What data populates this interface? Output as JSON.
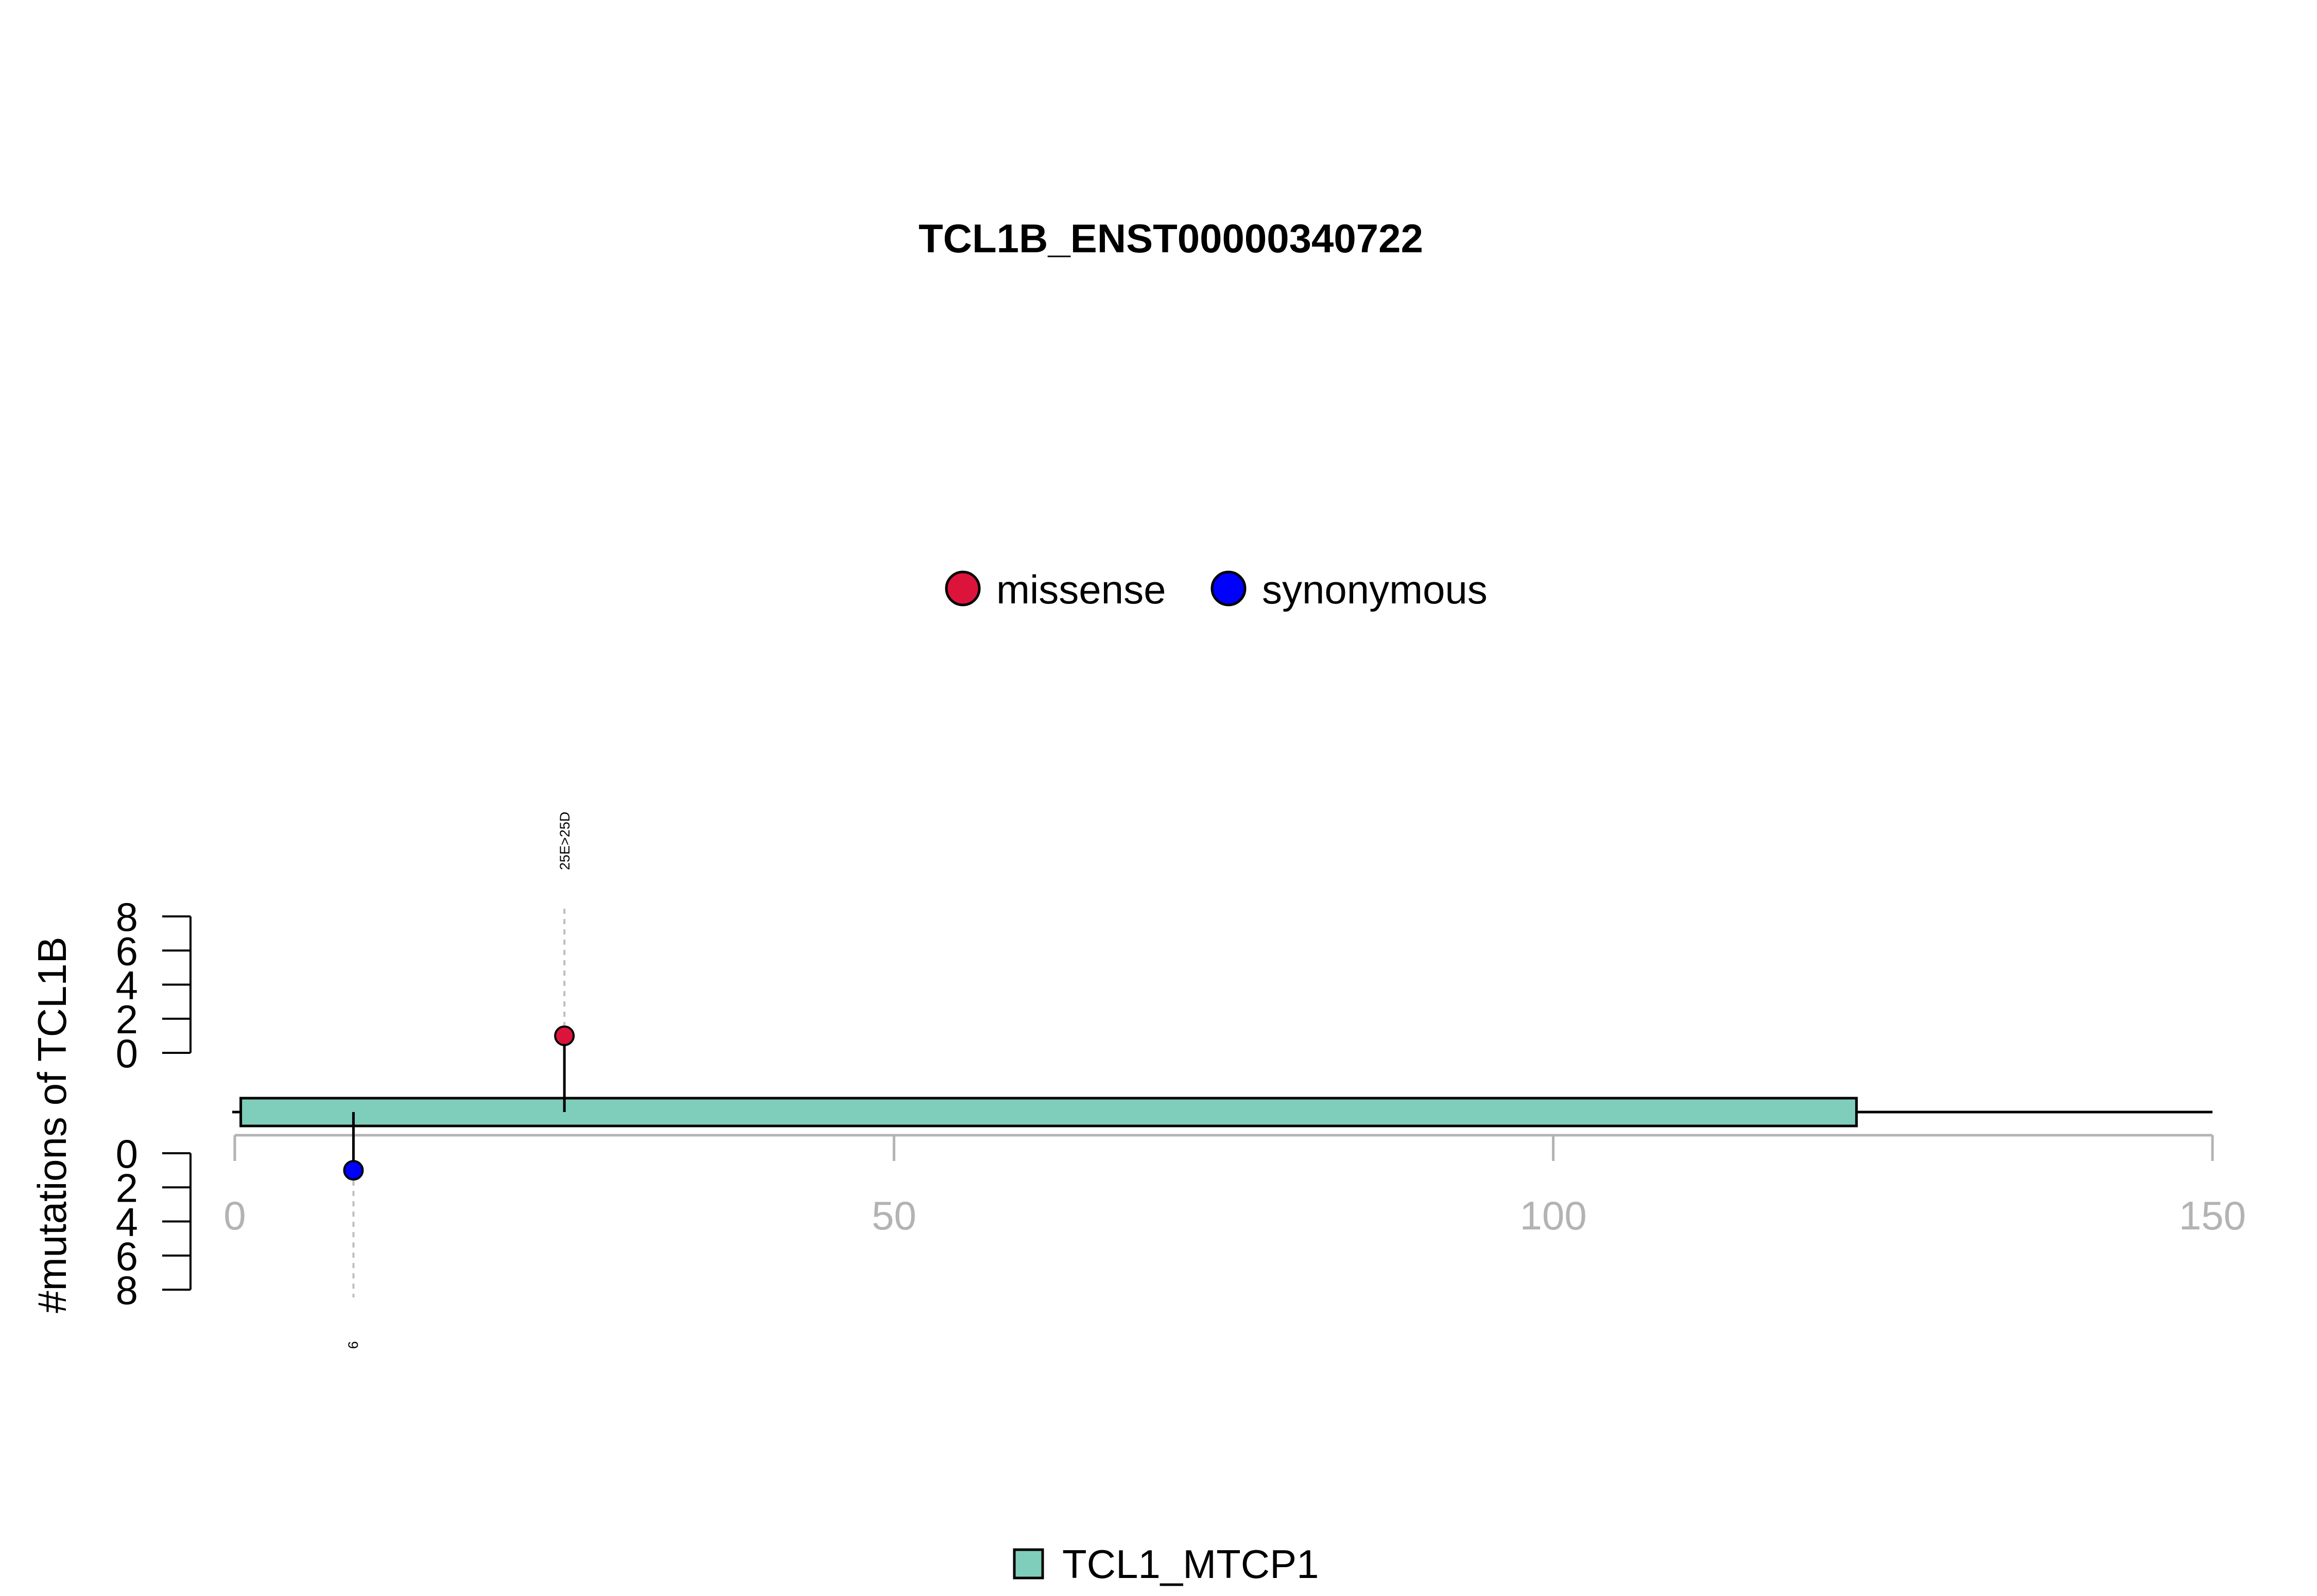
{
  "chart_data": {
    "type": "lollipop",
    "title": "TCL1B_ENST00000340722",
    "ylabel": "#mutations of TCL1B",
    "xlim": [
      0,
      150
    ],
    "x_ticks": [
      0,
      50,
      100,
      150
    ],
    "y_ticks_top": [
      0,
      2,
      4,
      6,
      8
    ],
    "y_ticks_bottom": [
      0,
      2,
      4,
      6,
      8
    ],
    "ylim": [
      0,
      8
    ],
    "legend_top": {
      "placement": "top-center",
      "entries": [
        {
          "label": "missense",
          "color": "#DC143C"
        },
        {
          "label": "synonymous",
          "color": "#0000FF"
        }
      ]
    },
    "legend_bottom": {
      "placement": "bottom-center",
      "entries": [
        {
          "label": "TCL1_MTCP1",
          "color": "#7FCDBB"
        }
      ]
    },
    "protein": {
      "start": 1,
      "end": 150
    },
    "domains": [
      {
        "name": "TCL1_MTCP1",
        "start": 1,
        "end": 123,
        "color": "#7FCDBB"
      }
    ],
    "mutations": [
      {
        "position": 25,
        "count": 1,
        "type": "missense",
        "label": "25E>25D",
        "side": "top",
        "color": "#DC143C"
      },
      {
        "position": 9,
        "count": 1,
        "type": "synonymous",
        "label": "9",
        "side": "bottom",
        "color": "#0000FF"
      }
    ],
    "colors": {
      "axis_gray": "#B3B3B3",
      "guide_gray": "#BEBEBE"
    }
  }
}
